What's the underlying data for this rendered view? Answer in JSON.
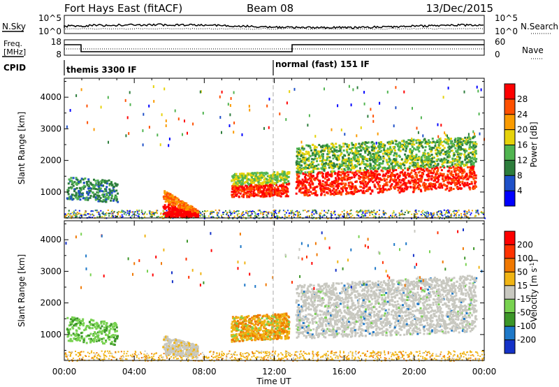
{
  "header": {
    "station": "Fort Hays East (fitACF)",
    "beam": "Beam 08",
    "date": "13/Dec/2015"
  },
  "panels": {
    "nsky_label": "N.Sky",
    "nsky_ticks": [
      "10^5",
      "10^0"
    ],
    "nsearch_label": "N.Search",
    "nsearch_ticks": [
      "10^5",
      "10^0"
    ],
    "freq_label_1": "Freq.",
    "freq_label_2": "[MHz]",
    "freq_ticks": [
      "18",
      "8"
    ],
    "nave_label": "Nave",
    "nave_ticks": [
      "60",
      "0"
    ],
    "cpid_label": "CPID",
    "cpid_segments": [
      "themis 3300 IF",
      "normal (fast) 151 IF"
    ]
  },
  "chart_data": [
    {
      "type": "heatmap",
      "name": "power",
      "ylabel": "Slant Range [km]",
      "yticks": [
        1000,
        2000,
        3000,
        4000
      ],
      "ylim": [
        180,
        4600
      ],
      "xlim": [
        0,
        24
      ],
      "colorbar_label": "Power [dB]",
      "colorbar_ticks": [
        "4",
        "8",
        "12",
        "16",
        "20",
        "24",
        "28"
      ],
      "colors": [
        "#0000ff",
        "#1e50c8",
        "#2d7d3c",
        "#50b450",
        "#e6d20a",
        "#fa9b00",
        "#ff5000",
        "#ff0000"
      ]
    },
    {
      "type": "heatmap",
      "name": "velocity",
      "ylabel": "Slant Range [km]",
      "yticks": [
        1000,
        2000,
        3000,
        4000
      ],
      "ylim": [
        180,
        4600
      ],
      "xlim": [
        0,
        24
      ],
      "xlabel": "Time UT",
      "xticks": [
        "00:00",
        "04:00",
        "08:00",
        "12:00",
        "16:00",
        "20:00",
        "00:00"
      ],
      "colorbar_label": "Velocity [m s",
      "colorbar_label_sup": "-1",
      "colorbar_label_end": "]",
      "colorbar_ticks": [
        "200",
        "100",
        "50",
        "15",
        "-15",
        "-50",
        "-100",
        "-200"
      ],
      "colors": [
        "#1432c8",
        "#1e78c8",
        "#3c9628",
        "#78d250",
        "#c8c8c0",
        "#f0b414",
        "#f07800",
        "#ff3200",
        "#ff0000"
      ]
    }
  ]
}
